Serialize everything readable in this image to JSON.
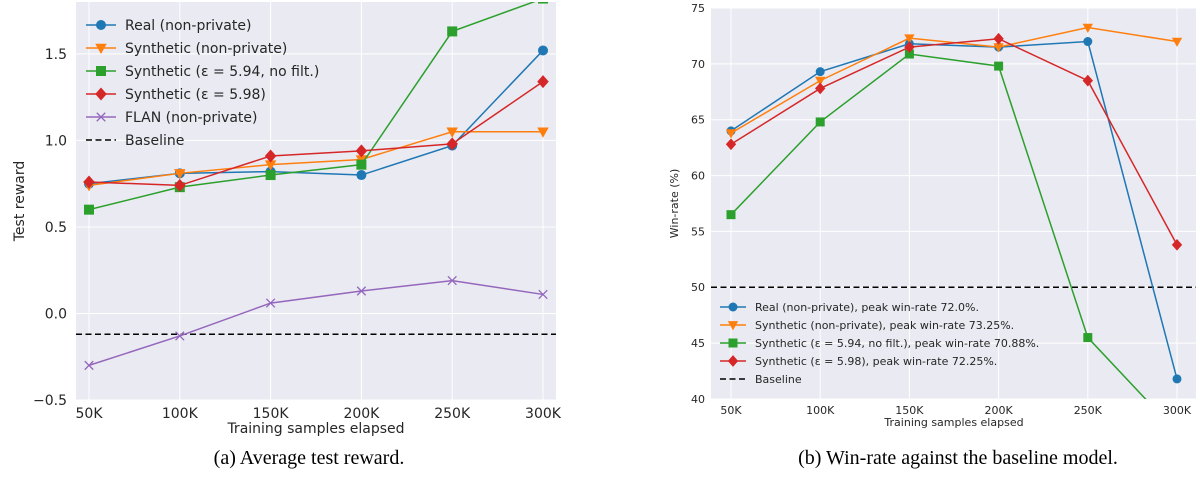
{
  "chart_data": [
    {
      "type": "line",
      "xlabel": "Training samples elapsed",
      "ylabel": "Test reward",
      "categories": [
        "50K",
        "100K",
        "150K",
        "200K",
        "250K",
        "300K"
      ],
      "ylim": [
        -0.5,
        1.8
      ],
      "yticks": [
        -0.5,
        0.0,
        0.5,
        1.0,
        1.5
      ],
      "ytick_labels": [
        "−0.5",
        "0.0",
        "0.5",
        "1.0",
        "1.5"
      ],
      "grid": true,
      "legend_position": "top-left",
      "series": [
        {
          "name": "Real (non-private)",
          "color": "#1f77b4",
          "marker": "circle",
          "values": [
            0.75,
            0.81,
            0.82,
            0.8,
            0.97,
            1.52
          ]
        },
        {
          "name": "Synthetic (non-private)",
          "color": "#ff7f0e",
          "marker": "triangle-down",
          "values": [
            0.74,
            0.81,
            0.86,
            0.89,
            1.05,
            1.05
          ]
        },
        {
          "name": "Synthetic (ε = 5.94, no filt.)",
          "color": "#2ca02c",
          "marker": "square",
          "values": [
            0.6,
            0.73,
            0.8,
            0.86,
            1.63,
            1.82
          ]
        },
        {
          "name": "Synthetic (ε = 5.98)",
          "color": "#d62728",
          "marker": "diamond",
          "values": [
            0.76,
            0.74,
            0.91,
            0.94,
            0.98,
            1.34
          ]
        },
        {
          "name": "FLAN (non-private)",
          "color": "#9467bd",
          "marker": "x",
          "values": [
            -0.3,
            -0.13,
            0.06,
            0.13,
            0.19,
            0.11
          ]
        }
      ],
      "baseline": {
        "name": "Baseline",
        "value": -0.12,
        "color": "#000000",
        "style": "dashed"
      }
    },
    {
      "type": "line",
      "xlabel": "Training samples elapsed",
      "ylabel": "Win-rate (%)",
      "categories": [
        "50K",
        "100K",
        "150K",
        "200K",
        "250K",
        "300K"
      ],
      "ylim": [
        40,
        75
      ],
      "yticks": [
        40,
        45,
        50,
        55,
        60,
        65,
        70,
        75
      ],
      "ytick_labels": [
        "40",
        "45",
        "50",
        "55",
        "60",
        "65",
        "70",
        "75"
      ],
      "grid": true,
      "legend_position": "bottom-left",
      "series": [
        {
          "name": "Real (non-private), peak win-rate 72.0%.",
          "color": "#1f77b4",
          "marker": "circle",
          "values": [
            64.0,
            69.3,
            71.8,
            71.5,
            72.0,
            41.8
          ]
        },
        {
          "name": "Synthetic (non-private), peak win-rate 73.25%.",
          "color": "#ff7f0e",
          "marker": "triangle-down",
          "values": [
            63.8,
            68.5,
            72.3,
            71.5,
            73.25,
            72.0
          ]
        },
        {
          "name": "Synthetic (ε = 5.94, no filt.), peak win-rate 70.88%.",
          "color": "#2ca02c",
          "marker": "square",
          "values": [
            56.5,
            64.8,
            70.88,
            69.8,
            45.5,
            37.0
          ]
        },
        {
          "name": "Synthetic (ε = 5.98), peak win-rate 72.25%.",
          "color": "#d62728",
          "marker": "diamond",
          "values": [
            62.8,
            67.8,
            71.5,
            72.25,
            68.5,
            53.8
          ]
        }
      ],
      "baseline": {
        "name": "Baseline",
        "value": 50,
        "color": "#000000",
        "style": "dashed"
      }
    }
  ],
  "captions": {
    "a": "(a) Average test reward.",
    "b": "(b) Win-rate against the baseline model."
  }
}
